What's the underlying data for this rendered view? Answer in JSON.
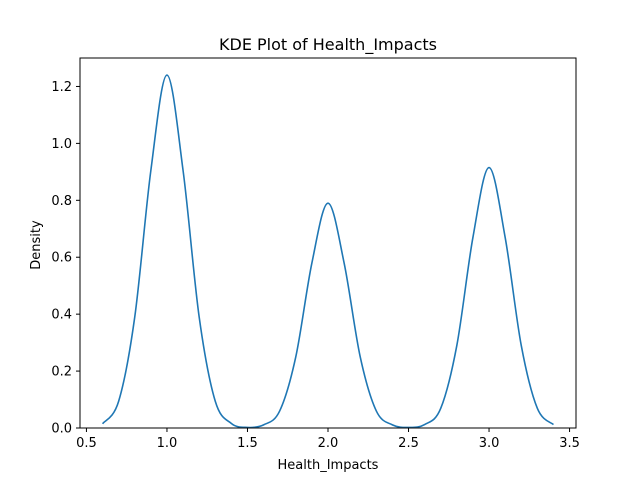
{
  "chart_data": {
    "type": "line",
    "title": "KDE Plot of Health_Impacts",
    "xlabel": "Health_Impacts",
    "ylabel": "Density",
    "xlim": [
      0.46,
      3.54
    ],
    "ylim": [
      0.0,
      1.3
    ],
    "x_ticks": [
      0.5,
      1.0,
      1.5,
      2.0,
      2.5,
      3.0,
      3.5
    ],
    "x_tick_labels": [
      "0.5",
      "1.0",
      "1.5",
      "2.0",
      "2.5",
      "3.0",
      "3.5"
    ],
    "y_ticks": [
      0.0,
      0.2,
      0.4,
      0.6,
      0.8,
      1.0,
      1.2
    ],
    "y_tick_labels": [
      "0.0",
      "0.2",
      "0.4",
      "0.6",
      "0.8",
      "1.0",
      "1.2"
    ],
    "grid": false,
    "legend": "none",
    "line_color": "#1f77b4",
    "series": [
      {
        "x": [
          0.6,
          0.7,
          0.8,
          0.9,
          1.0,
          1.1,
          1.2,
          1.3,
          1.4,
          1.5,
          1.6,
          1.7,
          1.8,
          1.9,
          2.0,
          2.1,
          2.2,
          2.3,
          2.4,
          2.5,
          2.6,
          2.7,
          2.8,
          2.9,
          3.0,
          3.1,
          3.2,
          3.3,
          3.4
        ],
        "y": [
          0.015,
          0.094,
          0.39,
          0.905,
          1.24,
          0.905,
          0.39,
          0.094,
          0.016,
          0.002,
          0.011,
          0.06,
          0.25,
          0.58,
          0.79,
          0.58,
          0.25,
          0.06,
          0.011,
          0.002,
          0.012,
          0.069,
          0.29,
          0.67,
          0.915,
          0.67,
          0.29,
          0.069,
          0.012
        ]
      }
    ]
  }
}
